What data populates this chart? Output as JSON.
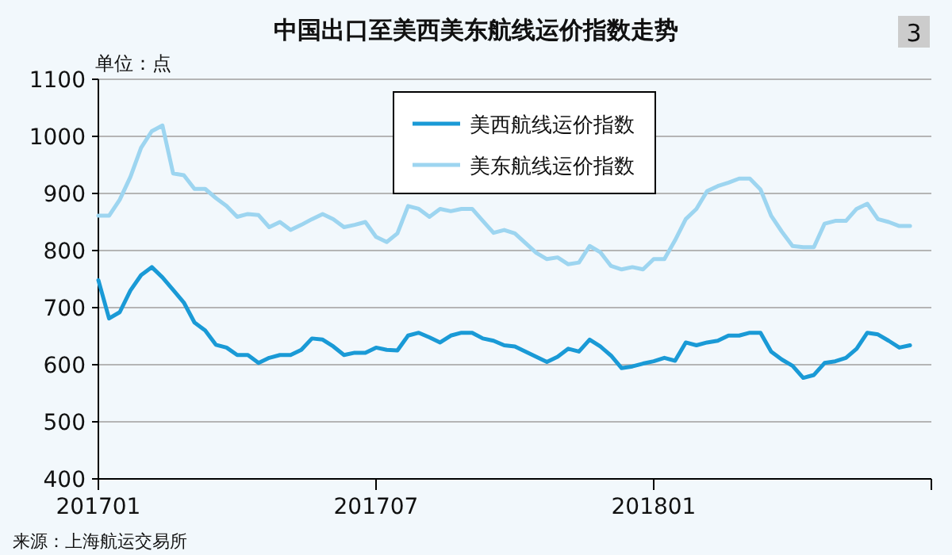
{
  "chart_data": {
    "type": "line",
    "title": "中国出口至美西美东航线运价指数走势",
    "ylabel": "单位：点",
    "annotations": [
      "3",
      "来源：上海航运交易所"
    ],
    "categories": [
      "201701",
      null,
      null,
      null,
      null,
      null,
      null,
      null,
      null,
      null,
      null,
      null,
      null,
      null,
      null,
      null,
      null,
      null,
      null,
      null,
      null,
      null,
      null,
      null,
      null,
      null,
      "201707",
      null,
      null,
      null,
      null,
      null,
      null,
      null,
      null,
      null,
      null,
      null,
      null,
      null,
      null,
      null,
      null,
      null,
      null,
      null,
      null,
      null,
      null,
      null,
      null,
      null,
      "201801",
      null,
      null,
      null,
      null,
      null,
      null,
      null,
      null,
      null,
      null,
      null,
      null,
      null,
      null,
      null,
      null,
      null,
      null,
      null,
      null,
      null,
      null,
      null,
      null,
      null,
      null
    ],
    "series": [
      {
        "name": "美西航线运价指数",
        "color": "#1a9ad6",
        "values": [
          748,
          681,
          692,
          730,
          757,
          771,
          753,
          731,
          709,
          674,
          660,
          635,
          630,
          617,
          617,
          603,
          612,
          617,
          617,
          626,
          646,
          644,
          632,
          617,
          621,
          621,
          630,
          626,
          625,
          651,
          656,
          648,
          639,
          651,
          656,
          656,
          646,
          642,
          634,
          632,
          623,
          614,
          605,
          614,
          628,
          623,
          644,
          632,
          616,
          594,
          597,
          602,
          606,
          612,
          607,
          639,
          634,
          639,
          642,
          651,
          651,
          656,
          656,
          623,
          609,
          598,
          577,
          582,
          603,
          606,
          612,
          628,
          656,
          653,
          642,
          630,
          634,
          null,
          null
        ]
      },
      {
        "name": "美东航线运价指数",
        "color": "#9dd5f0",
        "values": [
          861,
          861,
          889,
          929,
          980,
          1009,
          1019,
          935,
          932,
          908,
          908,
          892,
          878,
          859,
          864,
          862,
          841,
          850,
          836,
          845,
          855,
          864,
          855,
          841,
          845,
          850,
          824,
          815,
          830,
          878,
          873,
          859,
          873,
          869,
          873,
          873,
          852,
          831,
          836,
          830,
          813,
          796,
          785,
          788,
          776,
          779,
          808,
          797,
          773,
          767,
          771,
          767,
          785,
          785,
          818,
          855,
          873,
          904,
          913,
          919,
          926,
          926,
          907,
          861,
          833,
          808,
          806,
          806,
          847,
          852,
          852,
          873,
          882,
          855,
          850,
          843,
          843,
          null,
          null
        ]
      }
    ],
    "ylim": [
      400,
      1100
    ],
    "yticks": [
      400,
      500,
      600,
      700,
      800,
      900,
      1000,
      1100
    ],
    "grid": "y",
    "legend": "top",
    "marker": "none",
    "line_style": "solid"
  }
}
